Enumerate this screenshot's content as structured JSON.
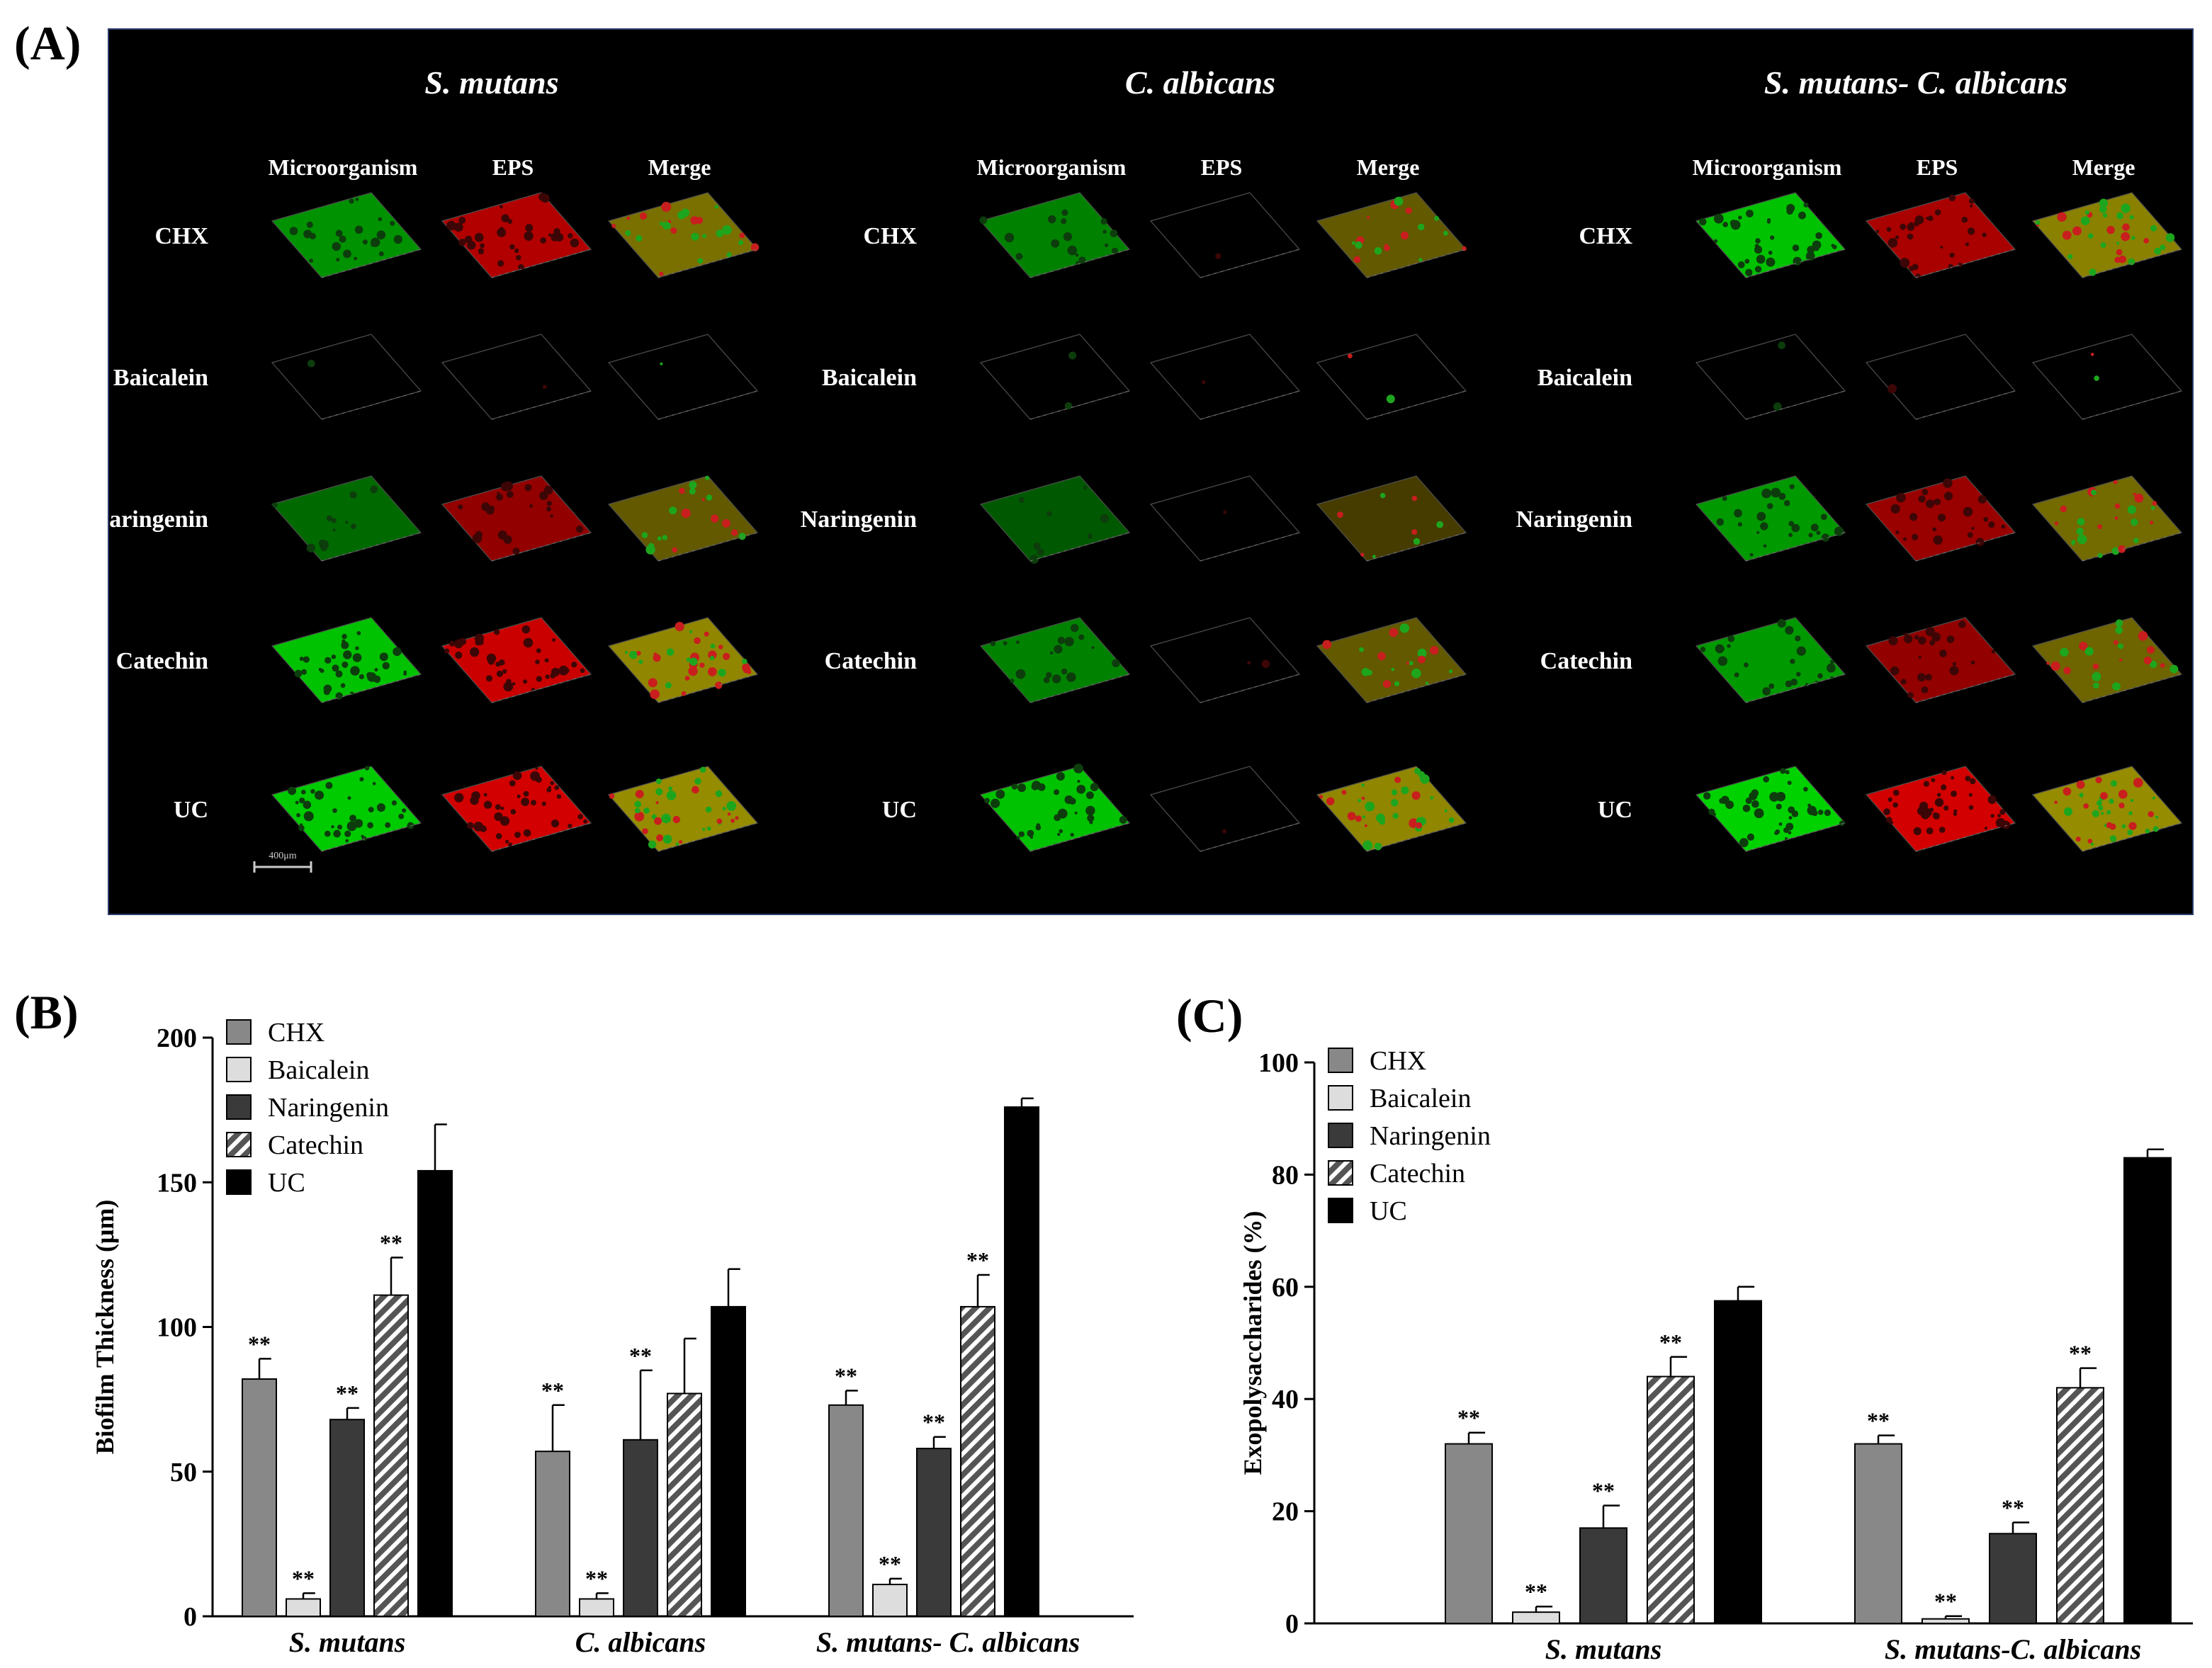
{
  "panel_labels": {
    "a": "(A)",
    "b": "(B)",
    "c": "(C)"
  },
  "confocal": {
    "scale_bar": "400μm",
    "groups": [
      {
        "title": "S. mutans",
        "columns": [
          "Microorganism",
          "EPS",
          "Merge"
        ],
        "rows": [
          "CHX",
          "Baicalein",
          "Naringenin",
          "Catechin",
          "UC"
        ],
        "intensity": [
          [
            0.55,
            0.75,
            0.65
          ],
          [
            0.03,
            0.02,
            0.03
          ],
          [
            0.3,
            0.55,
            0.45
          ],
          [
            0.85,
            0.9,
            0.85
          ],
          [
            0.9,
            0.95,
            0.9
          ]
        ]
      },
      {
        "title": "C. albicans",
        "columns": [
          "Microorganism",
          "EPS",
          "Merge"
        ],
        "rows": [
          "CHX",
          "Baicalein",
          "Naringenin",
          "Catechin",
          "UC"
        ],
        "intensity": [
          [
            0.45,
            0.02,
            0.45
          ],
          [
            0.04,
            0.02,
            0.04
          ],
          [
            0.2,
            0.02,
            0.2
          ],
          [
            0.45,
            0.04,
            0.45
          ],
          [
            0.85,
            0.03,
            0.85
          ]
        ]
      },
      {
        "title": "S. mutans- C. albicans",
        "columns": [
          "Microorganism",
          "EPS",
          "Merge"
        ],
        "rows": [
          "CHX",
          "Baicalein",
          "Naringenin",
          "Catechin",
          "UC"
        ],
        "intensity": [
          [
            0.85,
            0.7,
            0.8
          ],
          [
            0.05,
            0.02,
            0.05
          ],
          [
            0.6,
            0.6,
            0.6
          ],
          [
            0.6,
            0.55,
            0.55
          ],
          [
            0.95,
            0.95,
            0.9
          ]
        ]
      }
    ]
  },
  "colors": {
    "CHX": "#888888",
    "Baicalein": "#dddddd",
    "Naringenin": "#3a3a3a",
    "Catechin": "hatch",
    "UC": "#000000"
  },
  "chart_data": [
    {
      "id": "B",
      "type": "bar",
      "ylabel": "Biofilm Thickness (μm)",
      "xlabel": "",
      "ylim": [
        0,
        200
      ],
      "yticks": [
        0,
        50,
        100,
        150,
        200
      ],
      "categories": [
        "S. mutans",
        "C. albicans",
        "S. mutans- C. albicans"
      ],
      "series": [
        {
          "name": "CHX",
          "values": [
            82,
            57,
            73
          ],
          "errors": [
            7,
            16,
            5
          ],
          "marks": [
            "**",
            "**",
            "**"
          ]
        },
        {
          "name": "Baicalein",
          "values": [
            6,
            6,
            11
          ],
          "errors": [
            2,
            2,
            2
          ],
          "marks": [
            "**",
            "**",
            "**"
          ]
        },
        {
          "name": "Naringenin",
          "values": [
            68,
            61,
            58
          ],
          "errors": [
            4,
            24,
            4
          ],
          "marks": [
            "**",
            "**",
            "**"
          ]
        },
        {
          "name": "Catechin",
          "values": [
            111,
            77,
            107
          ],
          "errors": [
            13,
            19,
            11
          ],
          "marks": [
            "**",
            "",
            "**"
          ]
        },
        {
          "name": "UC",
          "values": [
            154,
            107,
            176
          ],
          "errors": [
            16,
            13,
            3
          ],
          "marks": [
            "",
            "",
            ""
          ]
        }
      ],
      "legend_position": "top-left"
    },
    {
      "id": "C",
      "type": "bar",
      "ylabel": "Exopolysaccharides (%)",
      "xlabel": "",
      "ylim": [
        0,
        100
      ],
      "yticks": [
        0,
        20,
        40,
        60,
        80,
        100
      ],
      "categories": [
        "S. mutans",
        "S. mutans-C. albicans"
      ],
      "series": [
        {
          "name": "CHX",
          "values": [
            32,
            32
          ],
          "errors": [
            2,
            1.5
          ],
          "marks": [
            "**",
            "**"
          ]
        },
        {
          "name": "Baicalein",
          "values": [
            2,
            0.8
          ],
          "errors": [
            1,
            0.5
          ],
          "marks": [
            "**",
            "**"
          ]
        },
        {
          "name": "Naringenin",
          "values": [
            17,
            16
          ],
          "errors": [
            4,
            2
          ],
          "marks": [
            "**",
            "**"
          ]
        },
        {
          "name": "Catechin",
          "values": [
            44,
            42
          ],
          "errors": [
            3.5,
            3.5
          ],
          "marks": [
            "**",
            "**"
          ]
        },
        {
          "name": "UC",
          "values": [
            57.5,
            83
          ],
          "errors": [
            2.5,
            1.5
          ],
          "marks": [
            "",
            ""
          ]
        }
      ],
      "legend_position": "top-left"
    }
  ]
}
